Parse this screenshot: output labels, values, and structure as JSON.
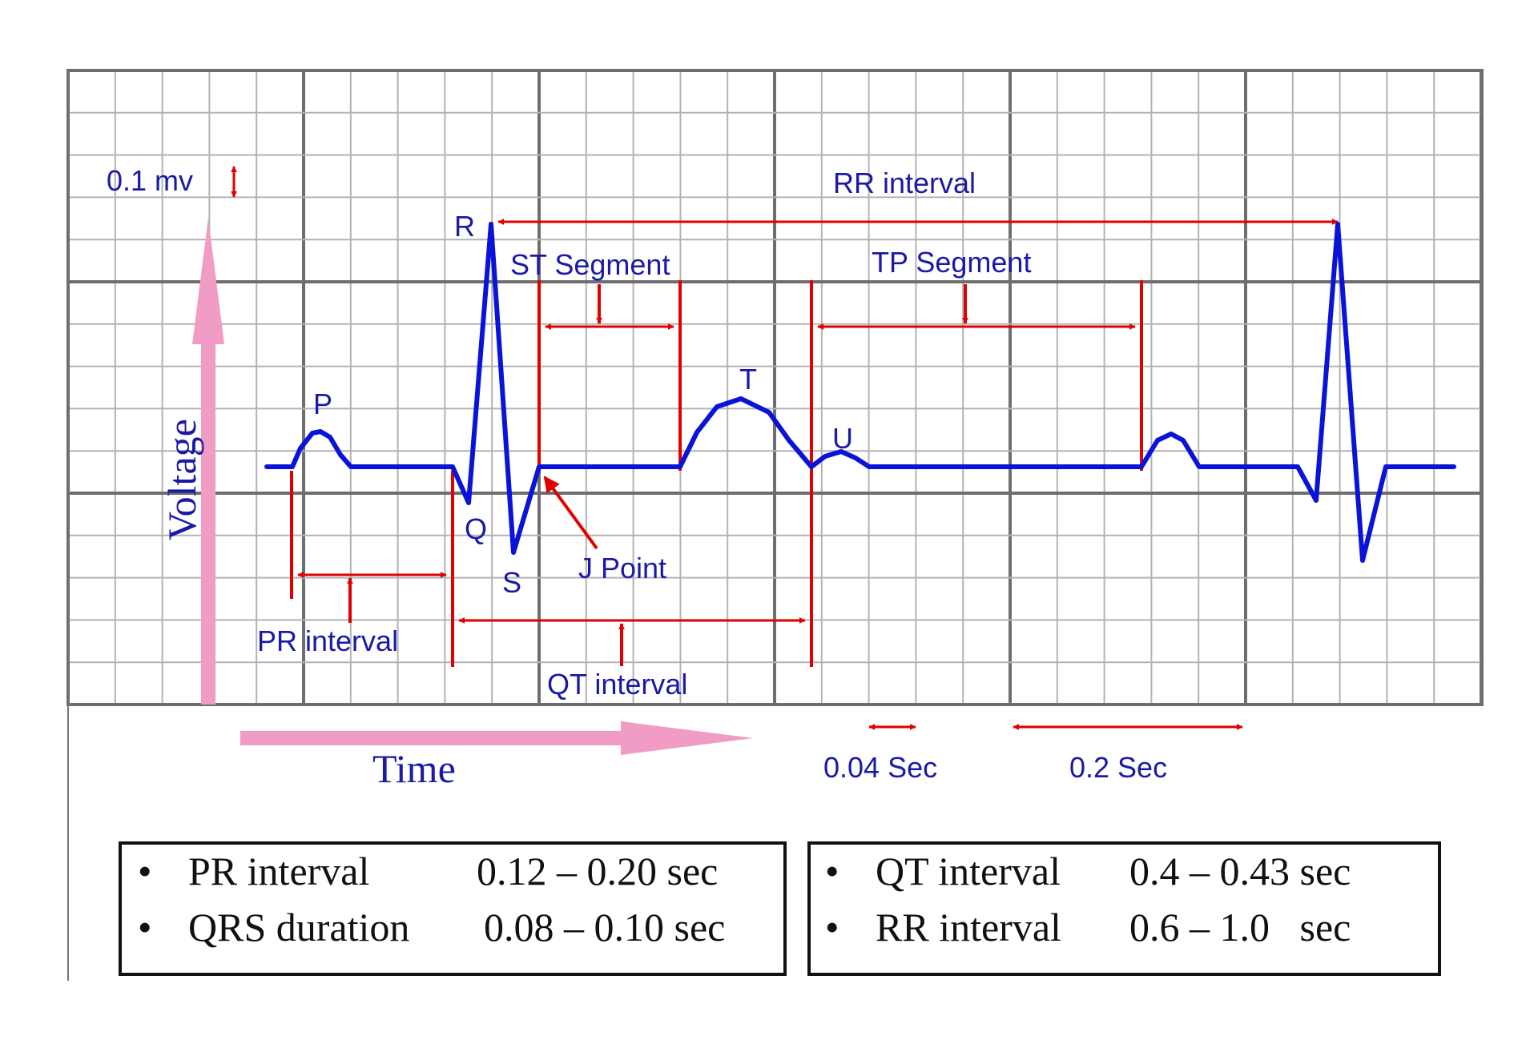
{
  "colors": {
    "grid_minor": "#b3b3b3",
    "grid_major": "#6e6e6e",
    "waveform": "#0a14d8",
    "annotation": "#e00000",
    "label": "#1a1aa6",
    "axis_arrow": "#f09cc4",
    "table_border": "#111111",
    "table_text": "#111111"
  },
  "scale": {
    "voltage_label": "0.1 mv",
    "small_box_time": "0.04 Sec",
    "large_box_time": "0.2 Sec"
  },
  "axes": {
    "y_label": "Voltage",
    "x_label": "Time"
  },
  "waves": {
    "p": "P",
    "q": "Q",
    "r": "R",
    "s": "S",
    "t": "T",
    "u": "U",
    "j_point": "J Point"
  },
  "segments": {
    "st": "ST Segment",
    "tp": "TP Segment"
  },
  "intervals": {
    "pr": "PR interval",
    "qt": "QT interval",
    "rr": "RR interval"
  },
  "ranges_left": [
    {
      "bullet": "•",
      "name": "PR interval",
      "value": "0.12 – 0.20 sec"
    },
    {
      "bullet": "•",
      "name": "QRS duration",
      "value": "0.08 – 0.10 sec"
    }
  ],
  "ranges_right": [
    {
      "bullet": "•",
      "name": "QT interval",
      "value": "0.4 – 0.43 sec"
    },
    {
      "bullet": "•",
      "name": "RR interval",
      "value": "0.6 – 1.0   sec"
    }
  ]
}
